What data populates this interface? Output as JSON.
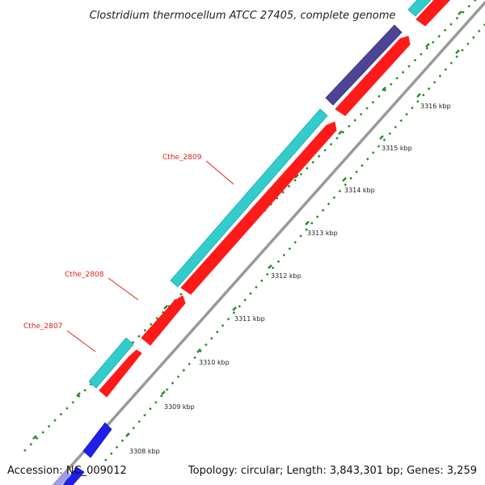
{
  "title": "Clostridium thermocellum ATCC 27405, complete genome",
  "accession": "Accession: NC_009012",
  "topology": "Topology: circular; Length: 3,843,301 bp; Genes: 3,259",
  "colors": {
    "backbone": "#999999",
    "cds_red": "#ff1a1a",
    "cds_cyan": "#33cccc",
    "cds_purple": "#4c4596",
    "cds_blue": "#1f1fe8",
    "tick_green": "#2a8a2a",
    "label_red": "#e0201e"
  },
  "ticks": [
    {
      "label": "3308 kbp"
    },
    {
      "label": "3309 kbp"
    },
    {
      "label": "3310 kbp"
    },
    {
      "label": "3311 kbp"
    },
    {
      "label": "3312 kbp"
    },
    {
      "label": "3313 kbp"
    },
    {
      "label": "3314 kbp"
    },
    {
      "label": "3315 kbp"
    },
    {
      "label": "3316 kbp"
    }
  ],
  "gene_labels": [
    {
      "text": "Cthe_2807"
    },
    {
      "text": "Cthe_2808"
    },
    {
      "text": "Cthe_2809"
    }
  ]
}
